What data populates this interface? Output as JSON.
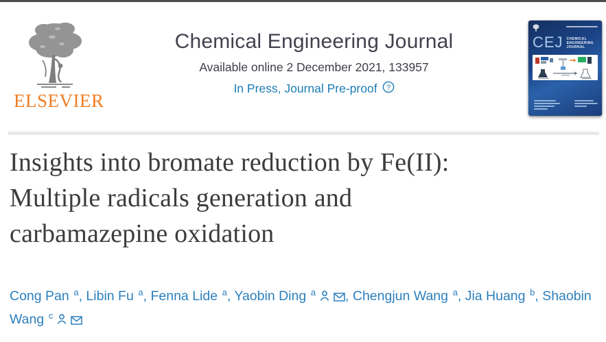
{
  "page": {
    "top_border_color": "#4c4c4c",
    "background": "#ffffff"
  },
  "publisher": {
    "name": "ELSEVIER",
    "logo_icon": "elsevier-tree-logo",
    "wordmark_color": "#ef7d22"
  },
  "header": {
    "journal_title": "Chemical Engineering Journal",
    "availability": "Available online 2 December 2021, 133957",
    "status_link": "In Press, Journal Pre-proof",
    "help_icon": "question-mark-circle-icon",
    "title_color": "#41424d",
    "link_color": "#1d7cb6"
  },
  "cover": {
    "abbrev": "CEJ",
    "name_lines": [
      "CHEMICAL",
      "ENGINEERING",
      "JOURNAL"
    ],
    "bg_color": "#1c4386",
    "abbrev_color": "#a9c9e9"
  },
  "article": {
    "title_lines": [
      "Insights into bromate reduction by Fe(II):",
      "Multiple radicals generation and",
      "carbamazepine oxidation"
    ],
    "title_color": "#3c3c3c"
  },
  "authors": {
    "color": "#2b7fbd",
    "separator": ", ",
    "list": [
      {
        "name": "Cong Pan",
        "sup": "a",
        "icons": []
      },
      {
        "name": "Libin Fu",
        "sup": "a",
        "icons": []
      },
      {
        "name": "Fenna Lide",
        "sup": "a",
        "icons": []
      },
      {
        "name": "Yaobin Ding",
        "sup": "a",
        "icons": [
          "person-icon",
          "envelope-icon"
        ]
      },
      {
        "name": "Chengjun Wang",
        "sup": "a",
        "icons": []
      },
      {
        "name": "Jia Huang",
        "sup": "b",
        "icons": []
      },
      {
        "name": "Shaobin Wang",
        "sup": "c",
        "icons": [
          "person-icon",
          "envelope-icon"
        ]
      }
    ]
  }
}
